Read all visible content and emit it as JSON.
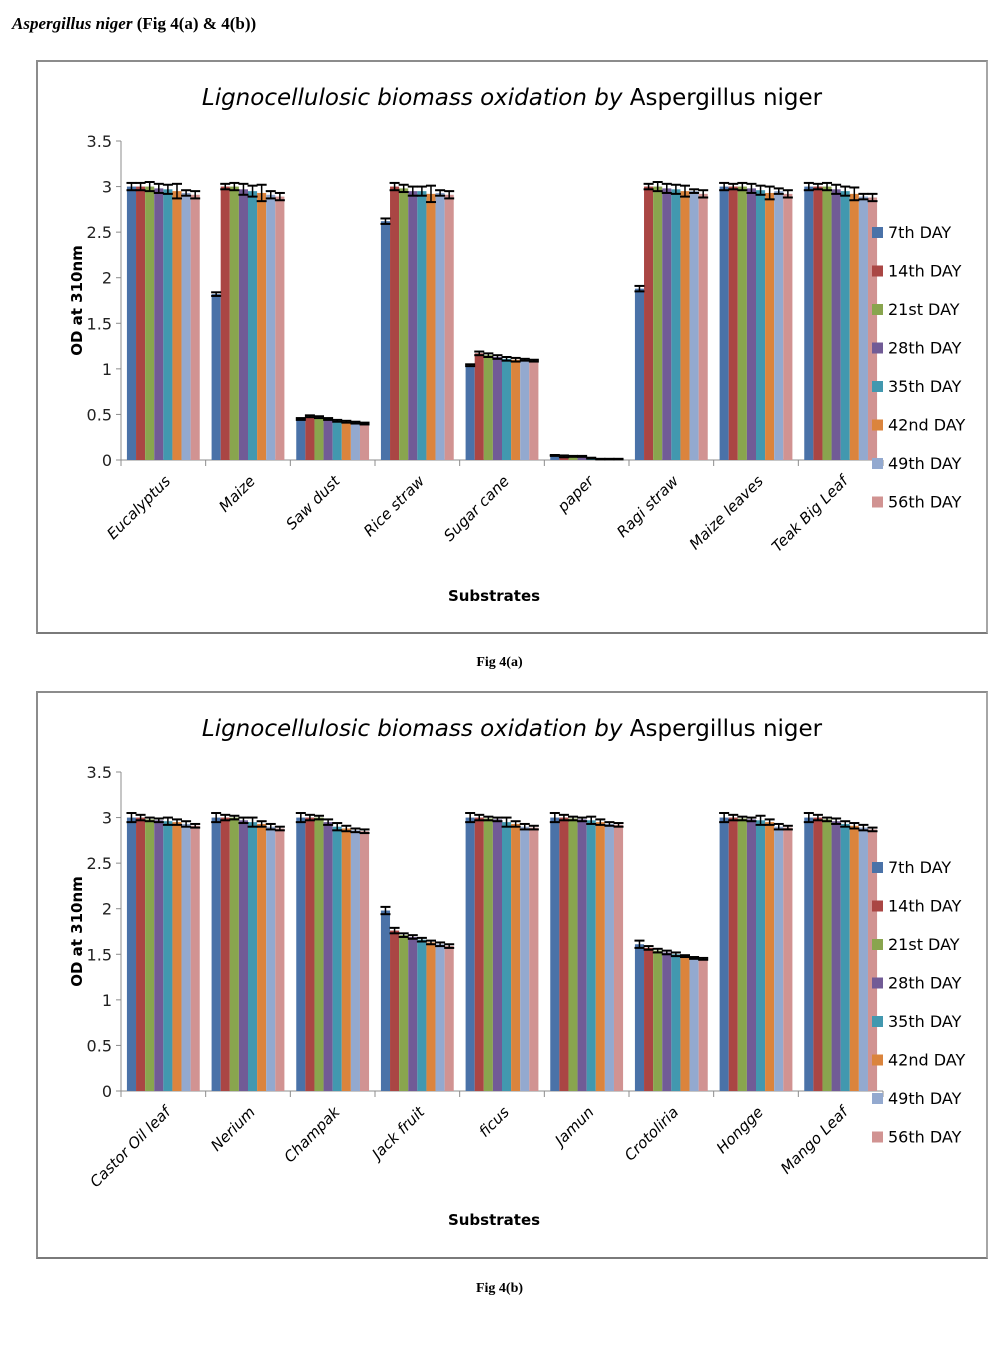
{
  "page": {
    "heading_species": "Aspergillus niger",
    "heading_rest": " (Fig 4(a) & 4(b))",
    "captions": [
      "Fig 4(a)",
      "Fig 4(b)"
    ]
  },
  "chart_data": [
    {
      "type": "bar",
      "title_italic": "Lignocellulosic biomass oxidation by",
      "title_plain": " Aspergillus niger",
      "xlabel": "Substrates",
      "ylabel": "OD at 310nm",
      "ylim": [
        0,
        3.5
      ],
      "yticks": [
        "0",
        "0.5",
        "1",
        "1.5",
        "2",
        "2.5",
        "3",
        "3.5"
      ],
      "legend_position": "right",
      "grid": false,
      "categories": [
        "Eucalyptus",
        "Maize",
        "Saw dust",
        "Rice straw",
        "Sugar cane",
        "paper",
        "Ragi straw",
        "Maize leaves",
        "Teak Big Leaf"
      ],
      "series": [
        {
          "name": "7th DAY",
          "color": "#4a72a8",
          "values": [
            3.0,
            1.82,
            0.45,
            2.62,
            1.04,
            0.05,
            1.88,
            3.0,
            3.0
          ],
          "errors": [
            0.04,
            0.02,
            0.01,
            0.03,
            0.01,
            0.005,
            0.03,
            0.04,
            0.04
          ]
        },
        {
          "name": "14th DAY",
          "color": "#aa4644",
          "values": [
            3.0,
            3.0,
            0.48,
            3.0,
            1.17,
            0.04,
            3.0,
            3.0,
            3.0
          ],
          "errors": [
            0.04,
            0.03,
            0.01,
            0.04,
            0.02,
            0.01,
            0.03,
            0.03,
            0.03
          ]
        },
        {
          "name": "21st DAY",
          "color": "#89a54e",
          "values": [
            3.0,
            3.0,
            0.47,
            2.98,
            1.15,
            0.04,
            3.0,
            3.0,
            3.0
          ],
          "errors": [
            0.05,
            0.04,
            0.01,
            0.04,
            0.02,
            0.005,
            0.05,
            0.04,
            0.04
          ]
        },
        {
          "name": "28th DAY",
          "color": "#715b96",
          "values": [
            2.98,
            2.97,
            0.45,
            2.95,
            1.13,
            0.04,
            2.98,
            2.98,
            2.97
          ],
          "errors": [
            0.05,
            0.06,
            0.01,
            0.05,
            0.02,
            0.005,
            0.05,
            0.05,
            0.05
          ]
        },
        {
          "name": "35th DAY",
          "color": "#4298af",
          "values": [
            2.97,
            2.95,
            0.43,
            2.95,
            1.11,
            0.02,
            2.97,
            2.96,
            2.95
          ],
          "errors": [
            0.05,
            0.06,
            0.01,
            0.05,
            0.02,
            0.005,
            0.05,
            0.05,
            0.05
          ]
        },
        {
          "name": "42nd DAY",
          "color": "#db843d",
          "values": [
            2.95,
            2.93,
            0.42,
            2.92,
            1.1,
            0.01,
            2.95,
            2.93,
            2.92
          ],
          "errors": [
            0.08,
            0.09,
            0.01,
            0.09,
            0.02,
            0.003,
            0.06,
            0.07,
            0.07
          ]
        },
        {
          "name": "49th DAY",
          "color": "#93a9cf",
          "values": [
            2.93,
            2.91,
            0.41,
            2.93,
            1.1,
            0.01,
            2.95,
            2.95,
            2.89
          ],
          "errors": [
            0.03,
            0.04,
            0.01,
            0.03,
            0.01,
            0.003,
            0.02,
            0.03,
            0.03
          ]
        },
        {
          "name": "56th DAY",
          "color": "#d19392",
          "values": [
            2.91,
            2.89,
            0.4,
            2.91,
            1.09,
            0.01,
            2.92,
            2.92,
            2.88
          ],
          "errors": [
            0.04,
            0.04,
            0.01,
            0.04,
            0.01,
            0.003,
            0.04,
            0.04,
            0.04
          ]
        }
      ]
    },
    {
      "type": "bar",
      "title_italic": "Lignocellulosic biomass oxidation by",
      "title_plain": " Aspergillus niger",
      "xlabel": "Substrates",
      "ylabel": "OD at 310nm",
      "ylim": [
        0,
        3.5
      ],
      "yticks": [
        "0",
        "0.5",
        "1",
        "1.5",
        "2",
        "2.5",
        "3",
        "3.5"
      ],
      "legend_position": "right",
      "grid": false,
      "categories": [
        "Castor Oil leaf",
        "Nerium",
        "Champak",
        "Jack fruit",
        "ficus",
        "Jamun",
        "Crotoliria",
        "Hongge",
        "Mango Leaf"
      ],
      "series": [
        {
          "name": "7th DAY",
          "color": "#4a72a8",
          "values": [
            3.0,
            3.0,
            3.0,
            1.98,
            3.0,
            3.0,
            1.61,
            3.0,
            3.0
          ],
          "errors": [
            0.05,
            0.05,
            0.05,
            0.04,
            0.05,
            0.05,
            0.04,
            0.05,
            0.05
          ]
        },
        {
          "name": "14th DAY",
          "color": "#aa4644",
          "values": [
            3.0,
            3.0,
            3.0,
            1.76,
            3.0,
            3.0,
            1.57,
            3.0,
            3.0
          ],
          "errors": [
            0.03,
            0.03,
            0.03,
            0.03,
            0.03,
            0.03,
            0.02,
            0.03,
            0.03
          ]
        },
        {
          "name": "21st DAY",
          "color": "#89a54e",
          "values": [
            2.98,
            3.0,
            3.0,
            1.71,
            2.99,
            2.99,
            1.54,
            2.99,
            2.98
          ],
          "errors": [
            0.02,
            0.02,
            0.02,
            0.02,
            0.02,
            0.02,
            0.02,
            0.02,
            0.02
          ]
        },
        {
          "name": "28th DAY",
          "color": "#715b96",
          "values": [
            2.97,
            2.97,
            2.95,
            1.69,
            2.98,
            2.98,
            1.52,
            2.98,
            2.96
          ],
          "errors": [
            0.02,
            0.03,
            0.03,
            0.02,
            0.02,
            0.02,
            0.02,
            0.02,
            0.03
          ]
        },
        {
          "name": "35th DAY",
          "color": "#4298af",
          "values": [
            2.96,
            2.95,
            2.9,
            1.66,
            2.95,
            2.97,
            1.5,
            2.97,
            2.93
          ],
          "errors": [
            0.04,
            0.05,
            0.04,
            0.02,
            0.05,
            0.04,
            0.02,
            0.05,
            0.03
          ]
        },
        {
          "name": "42nd DAY",
          "color": "#db843d",
          "values": [
            2.95,
            2.93,
            2.88,
            1.63,
            2.93,
            2.95,
            1.48,
            2.95,
            2.91
          ],
          "errors": [
            0.03,
            0.03,
            0.03,
            0.02,
            0.03,
            0.03,
            0.01,
            0.03,
            0.03
          ]
        },
        {
          "name": "49th DAY",
          "color": "#93a9cf",
          "values": [
            2.93,
            2.9,
            2.86,
            1.61,
            2.9,
            2.93,
            1.46,
            2.9,
            2.89
          ],
          "errors": [
            0.03,
            0.03,
            0.02,
            0.02,
            0.03,
            0.02,
            0.01,
            0.03,
            0.03
          ]
        },
        {
          "name": "56th DAY",
          "color": "#d19392",
          "values": [
            2.91,
            2.88,
            2.85,
            1.59,
            2.89,
            2.92,
            1.45,
            2.89,
            2.87
          ],
          "errors": [
            0.02,
            0.02,
            0.02,
            0.02,
            0.02,
            0.02,
            0.01,
            0.02,
            0.02
          ]
        }
      ]
    }
  ]
}
